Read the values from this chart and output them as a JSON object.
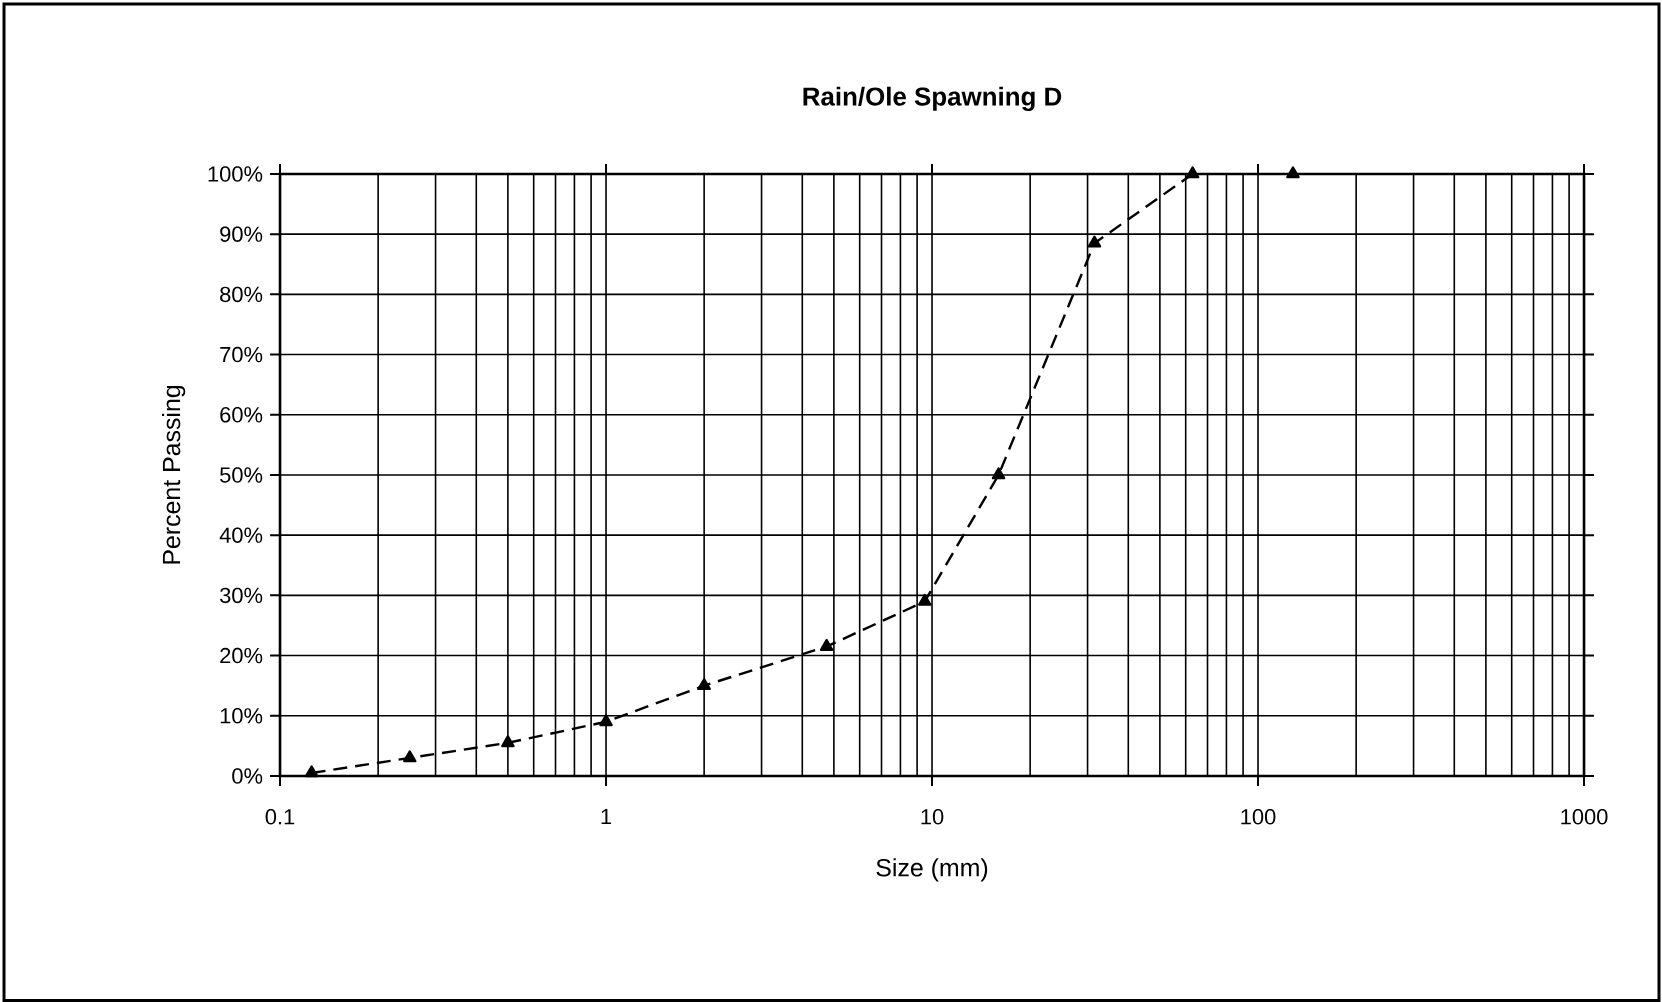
{
  "chart_data": {
    "type": "line",
    "title": "Rain/Ole Spawning D",
    "xlabel": "Size (mm)",
    "ylabel": "Percent Passing",
    "log": "x",
    "grid": true,
    "marker": "triangle",
    "line_style": "dashed",
    "xlim": [
      0.1,
      1000
    ],
    "xticks": [
      0.1,
      1,
      10,
      100,
      1000
    ],
    "ylim": [
      0,
      100
    ],
    "yticks": [
      {
        "value": 0,
        "label": "0%"
      },
      {
        "value": 10,
        "label": "10%"
      },
      {
        "value": 20,
        "label": "20%"
      },
      {
        "value": 30,
        "label": "30%"
      },
      {
        "value": 40,
        "label": "40%"
      },
      {
        "value": 50,
        "label": "50%"
      },
      {
        "value": 60,
        "label": "60%"
      },
      {
        "value": 70,
        "label": "70%"
      },
      {
        "value": 80,
        "label": "80%"
      },
      {
        "value": 90,
        "label": "90%"
      },
      {
        "value": 100,
        "label": "100%"
      }
    ],
    "series": [
      {
        "color": "#000000",
        "x": [
          0.125,
          0.25,
          0.5,
          1,
          2,
          4.75,
          9.5,
          16,
          31.5,
          63
        ],
        "values": [
          0.5,
          3,
          5.5,
          9,
          15,
          21.5,
          29,
          50,
          88.5,
          100
        ]
      },
      {
        "type": "scatter",
        "color": "#000000",
        "x": [
          128
        ],
        "values": [
          100
        ]
      }
    ]
  }
}
